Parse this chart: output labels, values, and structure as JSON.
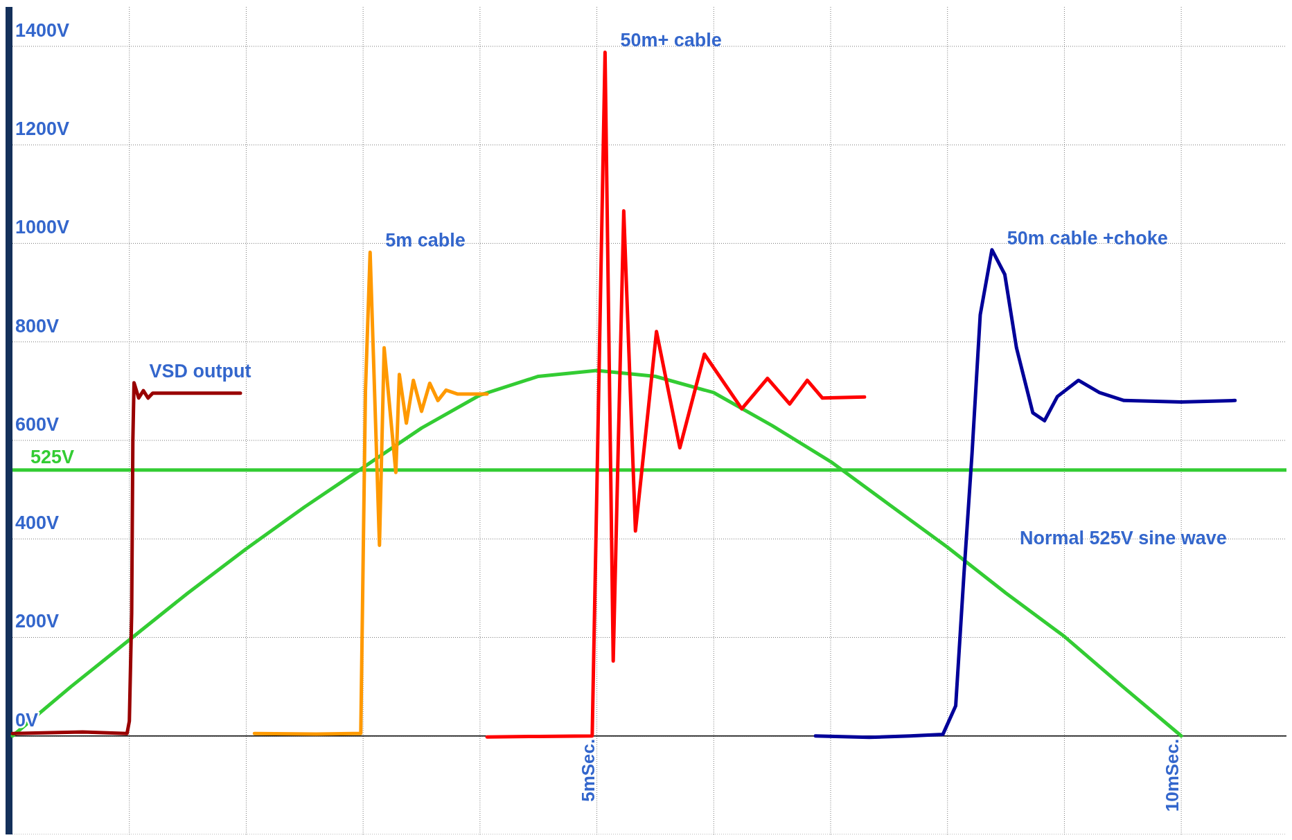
{
  "chart_data": {
    "type": "line",
    "xlim": [
      0,
      10.9
    ],
    "ylim": [
      -200,
      1480
    ],
    "xticks": [
      {
        "value": 1,
        "label": null
      },
      {
        "value": 2,
        "label": null
      },
      {
        "value": 3,
        "label": null
      },
      {
        "value": 4,
        "label": null
      },
      {
        "value": 5,
        "label": "5mSec."
      },
      {
        "value": 6,
        "label": null
      },
      {
        "value": 7,
        "label": null
      },
      {
        "value": 8,
        "label": null
      },
      {
        "value": 9,
        "label": null
      },
      {
        "value": 10,
        "label": "10mSec."
      }
    ],
    "yticks": [
      {
        "value": -200,
        "label": null
      },
      {
        "value": 0,
        "label": "0V"
      },
      {
        "value": 200,
        "label": "200V"
      },
      {
        "value": 400,
        "label": "400V"
      },
      {
        "value": 600,
        "label": "600V"
      },
      {
        "value": 800,
        "label": "800V"
      },
      {
        "value": 1000,
        "label": "1000V"
      },
      {
        "value": 1200,
        "label": "1200V"
      },
      {
        "value": 1400,
        "label": "1400V"
      }
    ],
    "grid": true,
    "line_style": "solid",
    "marker": "none",
    "ref_lines": [
      {
        "axis": "y",
        "value": 540,
        "label": "525V",
        "color": "#33cc33"
      }
    ],
    "series": [
      {
        "name": "Normal 525V sine wave",
        "color": "#33cc33",
        "x": [
          0,
          0.5,
          1,
          1.5,
          2,
          2.5,
          3,
          3.5,
          4,
          4.5,
          5,
          5.5,
          6,
          6.5,
          7,
          7.5,
          8,
          8.5,
          9,
          9.5,
          10
        ],
        "values": [
          0,
          100,
          195,
          290,
          380,
          465,
          545,
          625,
          692,
          730,
          742,
          730,
          697,
          630,
          557,
          470,
          383,
          290,
          202,
          100,
          0
        ]
      },
      {
        "name": "VSD output",
        "color": "#990000",
        "x": [
          0,
          0.6,
          0.98,
          1.0,
          1.02,
          1.03,
          1.04,
          1.08,
          1.12,
          1.16,
          1.2,
          1.95
        ],
        "values": [
          5,
          8,
          5,
          30,
          250,
          600,
          717,
          686,
          701,
          686,
          696,
          696
        ]
      },
      {
        "name": "5m cable",
        "color": "#ff9900",
        "x": [
          2.07,
          2.6,
          2.98,
          3.02,
          3.06,
          3.14,
          3.18,
          3.28,
          3.31,
          3.37,
          3.43,
          3.5,
          3.57,
          3.64,
          3.71,
          3.81,
          4.06
        ],
        "values": [
          5,
          4,
          5,
          700,
          982,
          387,
          788,
          535,
          734,
          635,
          722,
          659,
          716,
          681,
          702,
          694,
          694
        ]
      },
      {
        "name": "50m+ cable",
        "color": "#ff0000",
        "x": [
          4.06,
          4.5,
          4.96,
          5.0,
          5.07,
          5.14,
          5.23,
          5.33,
          5.51,
          5.71,
          5.92,
          6.24,
          6.46,
          6.65,
          6.8,
          6.93,
          7.29
        ],
        "values": [
          -2,
          -1,
          0,
          500,
          1388,
          152,
          1066,
          416,
          821,
          585,
          775,
          664,
          726,
          674,
          722,
          686,
          688
        ]
      },
      {
        "name": "50m cable +choke",
        "color": "#000099",
        "x": [
          6.87,
          7.33,
          7.68,
          7.96,
          8.07,
          8.14,
          8.21,
          8.28,
          8.38,
          8.49,
          8.59,
          8.73,
          8.83,
          8.94,
          9.12,
          9.3,
          9.51,
          10.0,
          10.46
        ],
        "values": [
          0,
          -3,
          0,
          3,
          61,
          326,
          574,
          855,
          987,
          937,
          788,
          656,
          640,
          689,
          722,
          697,
          681,
          678,
          681
        ]
      }
    ]
  }
}
